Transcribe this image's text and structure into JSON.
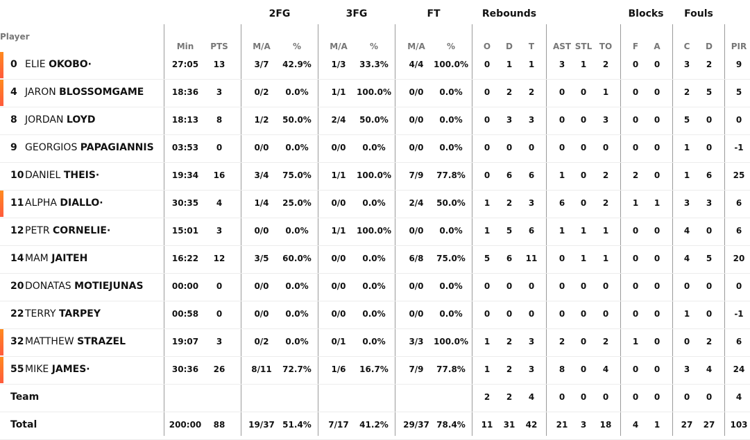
{
  "header": {
    "groups": [
      "2FG",
      "3FG",
      "FT",
      "Rebounds",
      "Blocks",
      "Fouls"
    ],
    "player_label": "Player",
    "columns": [
      "Min",
      "PTS",
      "M/A",
      "%",
      "M/A",
      "%",
      "M/A",
      "%",
      "O",
      "D",
      "T",
      "AST",
      "STL",
      "TO",
      "F",
      "A",
      "C",
      "D",
      "PIR"
    ]
  },
  "accent_color": "#ff6a2e",
  "players": [
    {
      "number": "0",
      "first": "ELIE",
      "last": "OKOBO·",
      "starter": true,
      "stats": [
        "27:05",
        "13",
        "3/7",
        "42.9%",
        "1/3",
        "33.3%",
        "4/4",
        "100.0%",
        "0",
        "1",
        "1",
        "3",
        "1",
        "2",
        "0",
        "0",
        "3",
        "2",
        "9"
      ]
    },
    {
      "number": "4",
      "first": "JARON",
      "last": "BLOSSOMGAME",
      "starter": true,
      "stats": [
        "18:36",
        "3",
        "0/2",
        "0.0%",
        "1/1",
        "100.0%",
        "0/0",
        "0.0%",
        "0",
        "2",
        "2",
        "0",
        "0",
        "1",
        "0",
        "0",
        "2",
        "5",
        "5"
      ]
    },
    {
      "number": "8",
      "first": "JORDAN",
      "last": "LOYD",
      "starter": false,
      "stats": [
        "18:13",
        "8",
        "1/2",
        "50.0%",
        "2/4",
        "50.0%",
        "0/0",
        "0.0%",
        "0",
        "3",
        "3",
        "0",
        "0",
        "3",
        "0",
        "0",
        "5",
        "0",
        "0"
      ]
    },
    {
      "number": "9",
      "first": "GEORGIOS",
      "last": "PAPAGIANNIS",
      "starter": false,
      "stats": [
        "03:53",
        "0",
        "0/0",
        "0.0%",
        "0/0",
        "0.0%",
        "0/0",
        "0.0%",
        "0",
        "0",
        "0",
        "0",
        "0",
        "0",
        "0",
        "0",
        "1",
        "0",
        "-1"
      ]
    },
    {
      "number": "10",
      "first": "DANIEL",
      "last": "THEIS·",
      "starter": false,
      "stats": [
        "19:34",
        "16",
        "3/4",
        "75.0%",
        "1/1",
        "100.0%",
        "7/9",
        "77.8%",
        "0",
        "6",
        "6",
        "1",
        "0",
        "2",
        "2",
        "0",
        "1",
        "6",
        "25"
      ]
    },
    {
      "number": "11",
      "first": "ALPHA",
      "last": "DIALLO·",
      "starter": true,
      "stats": [
        "30:35",
        "4",
        "1/4",
        "25.0%",
        "0/0",
        "0.0%",
        "2/4",
        "50.0%",
        "1",
        "2",
        "3",
        "6",
        "0",
        "2",
        "1",
        "1",
        "3",
        "3",
        "6"
      ]
    },
    {
      "number": "12",
      "first": "PETR",
      "last": "CORNELIE·",
      "starter": false,
      "stats": [
        "15:01",
        "3",
        "0/0",
        "0.0%",
        "1/1",
        "100.0%",
        "0/0",
        "0.0%",
        "1",
        "5",
        "6",
        "1",
        "1",
        "1",
        "0",
        "0",
        "4",
        "0",
        "6"
      ]
    },
    {
      "number": "14",
      "first": "MAM",
      "last": "JAITEH",
      "starter": false,
      "stats": [
        "16:22",
        "12",
        "3/5",
        "60.0%",
        "0/0",
        "0.0%",
        "6/8",
        "75.0%",
        "5",
        "6",
        "11",
        "0",
        "1",
        "1",
        "0",
        "0",
        "4",
        "5",
        "20"
      ]
    },
    {
      "number": "20",
      "first": "DONATAS",
      "last": "MOTIEJUNAS",
      "starter": false,
      "stats": [
        "00:00",
        "0",
        "0/0",
        "0.0%",
        "0/0",
        "0.0%",
        "0/0",
        "0.0%",
        "0",
        "0",
        "0",
        "0",
        "0",
        "0",
        "0",
        "0",
        "0",
        "0",
        "0"
      ]
    },
    {
      "number": "22",
      "first": "TERRY",
      "last": "TARPEY",
      "starter": false,
      "stats": [
        "00:58",
        "0",
        "0/0",
        "0.0%",
        "0/0",
        "0.0%",
        "0/0",
        "0.0%",
        "0",
        "0",
        "0",
        "0",
        "0",
        "0",
        "0",
        "0",
        "1",
        "0",
        "-1"
      ]
    },
    {
      "number": "32",
      "first": "MATTHEW",
      "last": "STRAZEL",
      "starter": true,
      "stats": [
        "19:07",
        "3",
        "0/2",
        "0.0%",
        "0/1",
        "0.0%",
        "3/3",
        "100.0%",
        "1",
        "2",
        "3",
        "2",
        "0",
        "2",
        "1",
        "0",
        "0",
        "2",
        "6"
      ]
    },
    {
      "number": "55",
      "first": "MIKE",
      "last": "JAMES·",
      "starter": true,
      "stats": [
        "30:36",
        "26",
        "8/11",
        "72.7%",
        "1/6",
        "16.7%",
        "7/9",
        "77.8%",
        "1",
        "2",
        "3",
        "8",
        "0",
        "4",
        "0",
        "0",
        "3",
        "4",
        "24"
      ]
    }
  ],
  "team": {
    "label": "Team",
    "stats": [
      "",
      "",
      "",
      "",
      "",
      "",
      "",
      "",
      "2",
      "2",
      "4",
      "0",
      "0",
      "0",
      "0",
      "0",
      "0",
      "0",
      "4"
    ]
  },
  "total": {
    "label": "Total",
    "stats": [
      "200:00",
      "88",
      "19/37",
      "51.4%",
      "7/17",
      "41.2%",
      "29/37",
      "78.4%",
      "11",
      "31",
      "42",
      "21",
      "3",
      "18",
      "4",
      "1",
      "27",
      "27",
      "103"
    ]
  }
}
